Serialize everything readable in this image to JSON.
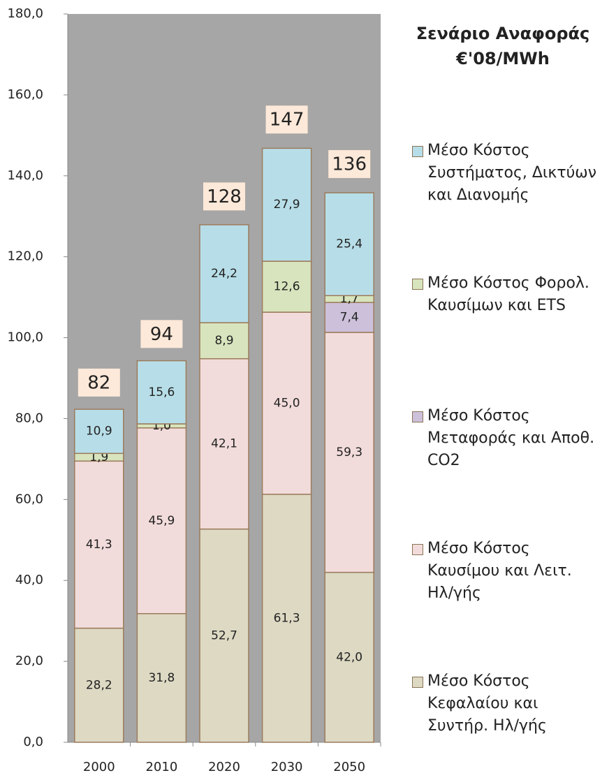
{
  "chart_data": {
    "type": "stacked_bar",
    "title": "Σενάριο Αναφοράς",
    "subtitle": "€'08/MWh",
    "categories": [
      "2000",
      "2010",
      "2020",
      "2030",
      "2050"
    ],
    "series": [
      {
        "name": "Μέσο Κόστος Κεφαλαίου και Συντήρ. Ηλ/γής",
        "color": "#ddd9c3",
        "values": [
          28.2,
          31.8,
          52.7,
          61.3,
          42.0
        ],
        "value_labels": [
          "28,2",
          "31,8",
          "52,7",
          "61,3",
          "42,0"
        ]
      },
      {
        "name": "Μέσο Κόστος Καυσίμου και Λειτ. Ηλ/γής",
        "color": "#f2dcdb",
        "values": [
          41.3,
          45.9,
          42.1,
          45.0,
          59.3
        ],
        "value_labels": [
          "41,3",
          "45,9",
          "42,1",
          "45,0",
          "59,3"
        ]
      },
      {
        "name": "Μέσο Κόστος Μεταφοράς και Αποθ. CO2",
        "color": "#ccc0da",
        "values": [
          null,
          null,
          null,
          null,
          7.4
        ],
        "value_labels": [
          null,
          null,
          null,
          null,
          "7,4"
        ]
      },
      {
        "name": "Μέσο Κόστος Φορολ. Καυσίμων και ETS",
        "color": "#d7e4bd",
        "values": [
          1.9,
          1.0,
          8.9,
          12.6,
          1.7
        ],
        "value_labels": [
          "1,9",
          "1,0",
          "8,9",
          "12,6",
          "1,7"
        ]
      },
      {
        "name": "Μέσο Κόστος Συστήματος, Δικτύων και Διανομής",
        "color": "#b7dee8",
        "values": [
          10.9,
          15.6,
          24.2,
          27.9,
          25.4
        ],
        "value_labels": [
          "10,9",
          "15,6",
          "24,2",
          "27,9",
          "25,4"
        ]
      }
    ],
    "totals": [
      82,
      94,
      128,
      147,
      136
    ],
    "ylim": [
      0,
      180
    ],
    "yticks": [
      {
        "value": 0,
        "label": "0,0"
      },
      {
        "value": 20,
        "label": "20,0"
      },
      {
        "value": 40,
        "label": "40,0"
      },
      {
        "value": 60,
        "label": "60,0"
      },
      {
        "value": 80,
        "label": "80,0"
      },
      {
        "value": 100,
        "label": "100,0"
      },
      {
        "value": 120,
        "label": "120,0"
      },
      {
        "value": 140,
        "label": "140,0"
      },
      {
        "value": 160,
        "label": "160,0"
      },
      {
        "value": 180,
        "label": "180,0"
      }
    ],
    "plot_background": "#a6a6a6"
  }
}
